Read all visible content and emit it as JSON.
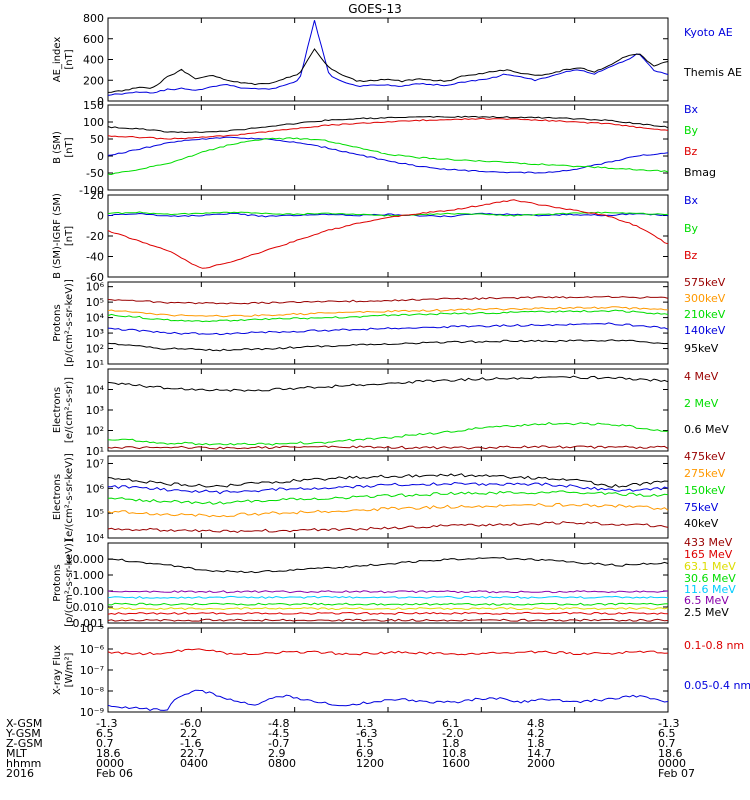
{
  "title": "GOES-13",
  "colors": {
    "black": "#000000",
    "blue": "#0000dd",
    "red": "#dd0000",
    "green": "#00dd00",
    "darkred": "#990000",
    "orange": "#ff9900",
    "cyan": "#00ccff",
    "yellow": "#dddd00",
    "purple": "#8800aa",
    "brown": "#aa3300"
  },
  "chart_data": [
    {
      "type": "line",
      "ylabel": [
        "AE_index",
        "[nT]"
      ],
      "ylim": [
        0,
        800
      ],
      "yticks": [
        0,
        200,
        400,
        600,
        800
      ],
      "yscale": "linear",
      "series": [
        {
          "name": "Kyoto AE",
          "color": "blue",
          "values": [
            60,
            70,
            90,
            80,
            110,
            120,
            100,
            140,
            160,
            130,
            120,
            110,
            150,
            200,
            780,
            250,
            180,
            140,
            160,
            150,
            140,
            170,
            160,
            150,
            180,
            200,
            220,
            260,
            230,
            200,
            240,
            280,
            300,
            260,
            330,
            380,
            460,
            300,
            250
          ]
        },
        {
          "name": "Themis AE",
          "color": "black",
          "values": [
            80,
            100,
            130,
            120,
            230,
            300,
            210,
            250,
            200,
            180,
            160,
            170,
            220,
            260,
            500,
            320,
            240,
            190,
            200,
            210,
            190,
            210,
            200,
            190,
            240,
            260,
            280,
            300,
            270,
            250,
            260,
            300,
            320,
            280,
            340,
            420,
            460,
            340,
            380
          ]
        }
      ]
    },
    {
      "type": "line",
      "ylabel": [
        "B (SM)",
        "[nT]"
      ],
      "ylim": [
        -100,
        150
      ],
      "yticks": [
        -100,
        -50,
        0,
        50,
        100,
        150
      ],
      "yscale": "linear",
      "series": [
        {
          "name": "Bx",
          "color": "blue",
          "values": [
            0,
            20,
            40,
            50,
            55,
            50,
            40,
            25,
            5,
            -15,
            -30,
            -40,
            -45,
            -48,
            -50,
            -40,
            -20,
            0,
            10
          ]
        },
        {
          "name": "By",
          "color": "green",
          "values": [
            -55,
            -40,
            -20,
            10,
            35,
            50,
            52,
            45,
            25,
            5,
            -5,
            -10,
            -15,
            -20,
            -25,
            -30,
            -35,
            -40,
            -45
          ]
        },
        {
          "name": "Bz",
          "color": "red",
          "values": [
            60,
            55,
            50,
            55,
            60,
            70,
            80,
            90,
            95,
            100,
            105,
            108,
            110,
            108,
            105,
            100,
            95,
            85,
            75
          ]
        },
        {
          "name": "Bmag",
          "color": "black",
          "values": [
            85,
            80,
            70,
            70,
            75,
            85,
            95,
            105,
            110,
            112,
            115,
            115,
            115,
            114,
            112,
            110,
            105,
            95,
            85
          ]
        }
      ]
    },
    {
      "type": "line",
      "ylabel": [
        "B (SM)-IGRF (SM)",
        "[nT]"
      ],
      "ylim": [
        -60,
        20
      ],
      "yticks": [
        -60,
        -40,
        -20,
        0,
        20
      ],
      "yscale": "linear",
      "series": [
        {
          "name": "Bx",
          "color": "blue",
          "values": [
            0,
            2,
            -1,
            0,
            2,
            -1,
            0,
            1,
            0,
            1,
            0,
            -1,
            2,
            1,
            0,
            1,
            0,
            2,
            0
          ]
        },
        {
          "name": "By",
          "color": "green",
          "values": [
            2,
            3,
            1,
            2,
            3,
            2,
            1,
            2,
            1,
            0,
            1,
            2,
            1,
            0,
            1,
            2,
            3,
            2,
            1
          ]
        },
        {
          "name": "Bz",
          "color": "red",
          "values": [
            -15,
            -25,
            -35,
            -52,
            -45,
            -35,
            -25,
            -15,
            -8,
            -2,
            2,
            5,
            10,
            15,
            10,
            5,
            0,
            -10,
            -28
          ]
        }
      ]
    },
    {
      "type": "line",
      "ylabel": [
        "Protons",
        "[p/(cm²-s-sr-keV)]"
      ],
      "yscale": "log",
      "ylim": [
        10,
        2000000
      ],
      "yticks": [
        10,
        100,
        1000,
        10000,
        100000,
        1000000
      ],
      "ytick_labels": [
        "10¹",
        "10²",
        "10³",
        "10⁴",
        "10⁵",
        "10⁶"
      ],
      "series": [
        {
          "name": "575keV",
          "color": "darkred",
          "values": [
            150000,
            90000,
            80000,
            90000,
            110000,
            130000,
            160000,
            180000,
            200000,
            220000,
            180000
          ]
        },
        {
          "name": "300keV",
          "color": "orange",
          "values": [
            30000,
            15000,
            12000,
            15000,
            20000,
            25000,
            30000,
            35000,
            40000,
            45000,
            30000
          ]
        },
        {
          "name": "210keV",
          "color": "green",
          "values": [
            15000,
            7000,
            6000,
            8000,
            10000,
            14000,
            18000,
            20000,
            25000,
            28000,
            15000
          ]
        },
        {
          "name": "140keV",
          "color": "blue",
          "values": [
            2000,
            1000,
            900,
            1200,
            1500,
            2000,
            2500,
            3000,
            3500,
            4000,
            2000
          ]
        },
        {
          "name": "95keV",
          "color": "black",
          "values": [
            200,
            100,
            80,
            100,
            150,
            200,
            250,
            300,
            300,
            350,
            200
          ]
        }
      ]
    },
    {
      "type": "line",
      "ylabel": [
        "Electrons",
        "[e/(cm²-s-sr)]"
      ],
      "yscale": "log",
      "ylim": [
        10,
        100000
      ],
      "yticks": [
        10,
        100,
        1000,
        10000
      ],
      "ytick_labels": [
        "10¹",
        "10²",
        "10³",
        "10⁴"
      ],
      "series": [
        {
          "name": "4 MeV",
          "color": "darkred",
          "values": [
            15,
            15,
            14,
            15,
            16,
            15,
            14,
            15,
            16,
            15,
            15
          ]
        },
        {
          "name": "2 MeV",
          "color": "green",
          "values": [
            40,
            25,
            20,
            22,
            28,
            45,
            80,
            150,
            230,
            190,
            90
          ]
        },
        {
          "name": "0.6 MeV",
          "color": "black",
          "values": [
            20000,
            12000,
            9000,
            10000,
            14000,
            20000,
            28000,
            35000,
            40000,
            38000,
            25000
          ]
        }
      ]
    },
    {
      "type": "line",
      "ylabel": [
        "Electrons",
        "[e/(cm²-s-sr-keV)]"
      ],
      "yscale": "log",
      "ylim": [
        10000,
        20000000
      ],
      "yticks": [
        10000,
        100000,
        1000000,
        10000000
      ],
      "ytick_labels": [
        "10⁴",
        "10⁵",
        "10⁶",
        "10⁷"
      ],
      "series": [
        {
          "name": "475keV",
          "color": "darkred",
          "values": [
            25000,
            20000,
            18000,
            20000,
            22000,
            25000,
            30000,
            35000,
            40000,
            38000,
            30000
          ]
        },
        {
          "name": "275keV",
          "color": "orange",
          "values": [
            120000,
            90000,
            80000,
            100000,
            120000,
            150000,
            180000,
            200000,
            220000,
            200000,
            150000
          ]
        },
        {
          "name": "150keV",
          "color": "green",
          "values": [
            400000,
            300000,
            250000,
            350000,
            400000,
            500000,
            600000,
            650000,
            700000,
            600000,
            500000
          ]
        },
        {
          "name": "75keV",
          "color": "blue",
          "values": [
            1200000,
            900000,
            700000,
            900000,
            1000000,
            1400000,
            1500000,
            1500000,
            1400000,
            800000,
            1000000
          ]
        },
        {
          "name": "40keV",
          "color": "black",
          "values": [
            2500000,
            1500000,
            1200000,
            1800000,
            2500000,
            3000000,
            3500000,
            3000000,
            2500000,
            1200000,
            1800000
          ]
        }
      ]
    },
    {
      "type": "line",
      "ylabel": [
        "Protons",
        "[p/(cm²-s-sr-keV)]"
      ],
      "yscale": "log",
      "ylim": [
        0.001,
        100
      ],
      "yticks": [
        0.001,
        0.01,
        0.1,
        1,
        10
      ],
      "ytick_labels": [
        "0.001",
        "0.010",
        "0.100",
        "1.000",
        "10.000"
      ],
      "series": [
        {
          "name": "433 MeV",
          "color": "darkred",
          "values": [
            0.0015,
            0.0015,
            0.0015,
            0.0015,
            0.0015,
            0.0015,
            0.0015,
            0.0015,
            0.0015,
            0.0015
          ]
        },
        {
          "name": "165 MeV",
          "color": "red",
          "values": [
            0.004,
            0.004,
            0.004,
            0.004,
            0.004,
            0.004,
            0.004,
            0.004,
            0.004,
            0.004
          ]
        },
        {
          "name": "63.1 MeV",
          "color": "yellow",
          "values": [
            0.008,
            0.008,
            0.008,
            0.008,
            0.008,
            0.008,
            0.008,
            0.008,
            0.008,
            0.008
          ]
        },
        {
          "name": "30.6 MeV",
          "color": "green",
          "values": [
            0.015,
            0.015,
            0.015,
            0.015,
            0.015,
            0.015,
            0.015,
            0.015,
            0.015,
            0.015
          ]
        },
        {
          "name": "11.6 MeV",
          "color": "cyan",
          "values": [
            0.04,
            0.04,
            0.04,
            0.04,
            0.04,
            0.04,
            0.04,
            0.04,
            0.04,
            0.04
          ]
        },
        {
          "name": "6.5 MeV",
          "color": "purple",
          "values": [
            0.09,
            0.09,
            0.09,
            0.09,
            0.09,
            0.09,
            0.09,
            0.09,
            0.09,
            0.09
          ]
        },
        {
          "name": "2.5 MeV",
          "color": "black",
          "values": [
            10,
            5,
            2,
            1.5,
            2,
            3,
            5,
            8,
            12,
            10,
            6,
            4,
            6
          ]
        }
      ]
    },
    {
      "type": "line",
      "ylabel": [
        "X-ray Flux",
        "[W/m²]"
      ],
      "yscale": "log",
      "ylim": [
        1e-09,
        1e-05
      ],
      "yticks": [
        1e-09,
        1e-08,
        1e-07,
        1e-06,
        1e-05
      ],
      "ytick_labels": [
        "10⁻⁹",
        "10⁻⁸",
        "10⁻⁷",
        "10⁻⁶",
        "10⁻⁵"
      ],
      "series": [
        {
          "name": "0.1-0.8 nm",
          "color": "red",
          "values": [
            7e-07,
            6e-07,
            6e-07,
            1.1e-06,
            6e-07,
            6e-07,
            7e-07,
            7e-07,
            6e-07,
            6e-07,
            7e-07,
            6e-07,
            6e-07,
            6e-07,
            7e-07,
            7e-07,
            6e-07,
            6e-07,
            8e-07,
            6e-07
          ]
        },
        {
          "name": "0.05-0.4 nm",
          "color": "blue",
          "values": [
            2e-09,
            1.5e-09,
            1.2e-09,
            1.1e-08,
            4e-09,
            2e-09,
            6e-09,
            3e-09,
            2e-09,
            3e-09,
            4e-09,
            3e-09,
            3e-09,
            5e-09,
            3e-09,
            4e-09,
            3e-09,
            4e-09,
            6e-09,
            3e-09
          ]
        }
      ]
    }
  ],
  "footer": {
    "rows": [
      {
        "label": "X-GSM",
        "values": [
          "-1.3",
          "-6.0",
          "-4.8",
          "1.3",
          "6.1",
          "4.8",
          "-1.3"
        ]
      },
      {
        "label": "Y-GSM",
        "values": [
          "6.5",
          "2.2",
          "-4.5",
          "-6.3",
          "-2.0",
          "4.2",
          "6.5"
        ]
      },
      {
        "label": "Z-GSM",
        "values": [
          "0.7",
          "-1.6",
          "-0.7",
          "1.5",
          "1.8",
          "1.8",
          "0.7"
        ]
      },
      {
        "label": "MLT",
        "values": [
          "18.6",
          "22.7",
          "2.9",
          "6.9",
          "10.8",
          "14.7",
          "18.6"
        ]
      },
      {
        "label": "hhmm",
        "values": [
          "0000",
          "0400",
          "0800",
          "1200",
          "1600",
          "2000",
          "0000"
        ]
      },
      {
        "label": "2016",
        "values": [
          "Feb 06",
          "",
          "",
          "",
          "",
          "",
          "Feb 07"
        ]
      }
    ]
  }
}
